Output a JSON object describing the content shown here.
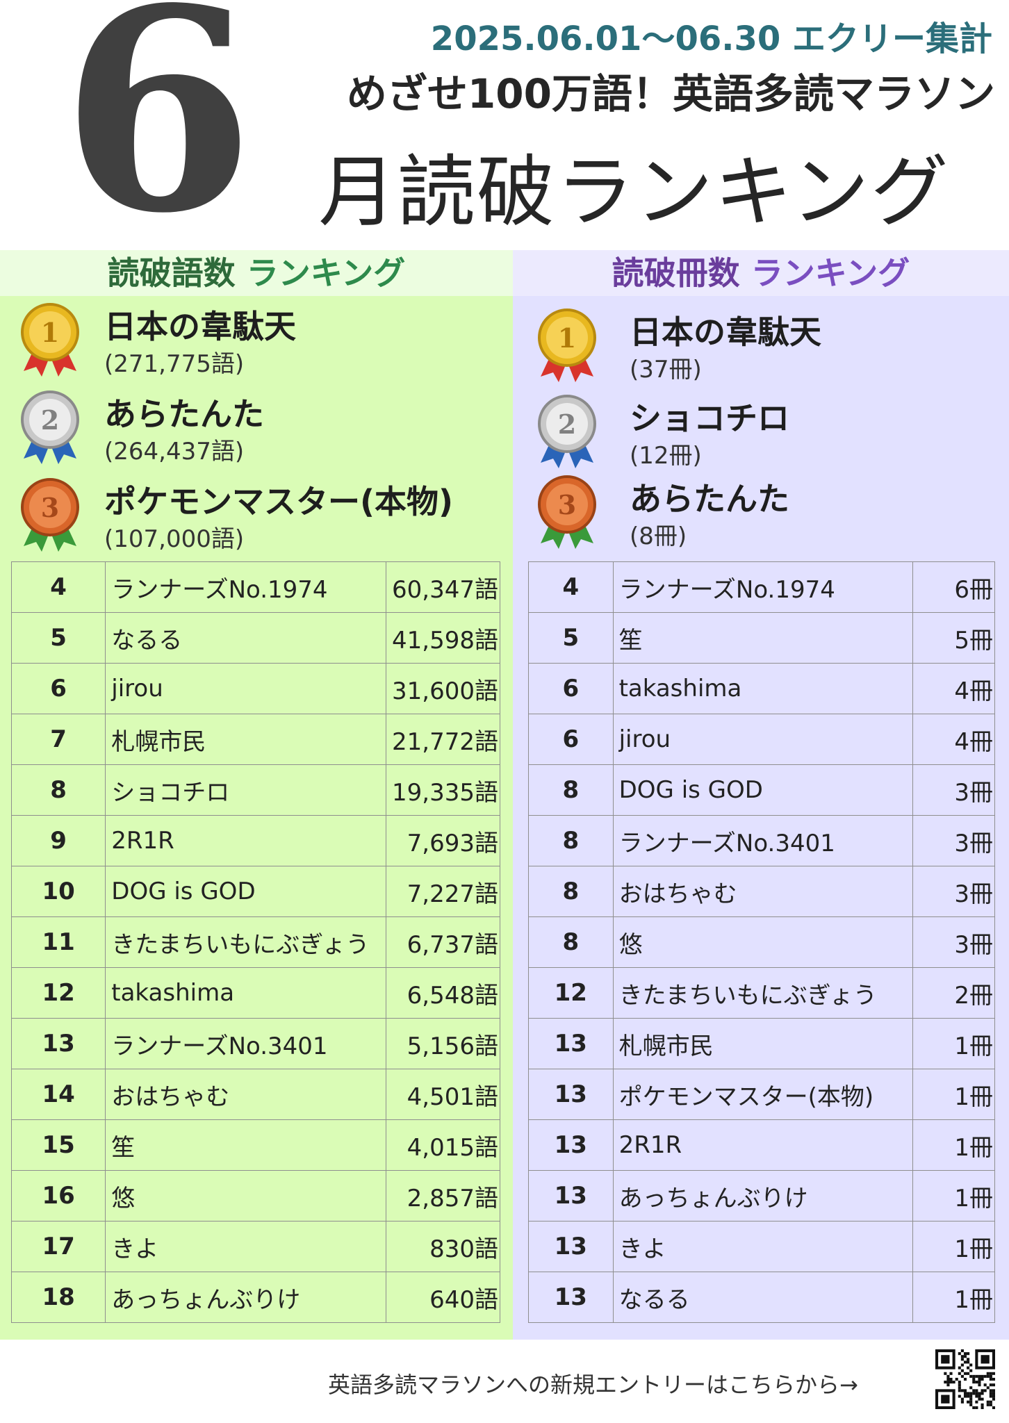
{
  "header": {
    "month_digit": "6",
    "date_range": "2025.06.01～06.30 エクリー集計",
    "subtitle": "めざせ100万語！英語多読マラソン",
    "title": "月読破ランキング"
  },
  "words_ranking": {
    "heading_a": "読破語数",
    "heading_b": "ランキング",
    "top3": [
      {
        "medal": "gold-medal-1",
        "name": "日本の韋駄天",
        "value": "(271,775語)"
      },
      {
        "medal": "silver-medal-2",
        "name": "あらたんた",
        "value": "(264,437語)"
      },
      {
        "medal": "bronze-medal-3",
        "name": "ポケモンマスター(本物)",
        "value": "(107,000語)"
      }
    ],
    "rows": [
      {
        "rank": "4",
        "name": "ランナーズNo.1974",
        "value": "60,347語"
      },
      {
        "rank": "5",
        "name": "なるる",
        "value": "41,598語"
      },
      {
        "rank": "6",
        "name": "jirou",
        "value": "31,600語"
      },
      {
        "rank": "7",
        "name": "札幌市民",
        "value": "21,772語"
      },
      {
        "rank": "8",
        "name": "ショコチロ",
        "value": "19,335語"
      },
      {
        "rank": "9",
        "name": "2R1R",
        "value": "7,693語"
      },
      {
        "rank": "10",
        "name": "DOG is GOD",
        "value": "7,227語"
      },
      {
        "rank": "11",
        "name": "きたまちいもにぶぎょう",
        "value": "6,737語"
      },
      {
        "rank": "12",
        "name": "takashima",
        "value": "6,548語"
      },
      {
        "rank": "13",
        "name": "ランナーズNo.3401",
        "value": "5,156語"
      },
      {
        "rank": "14",
        "name": "おはちゃむ",
        "value": "4,501語"
      },
      {
        "rank": "15",
        "name": "笙",
        "value": "4,015語"
      },
      {
        "rank": "16",
        "name": "悠",
        "value": "2,857語"
      },
      {
        "rank": "17",
        "name": "きよ",
        "value": "830語"
      },
      {
        "rank": "18",
        "name": "あっちょんぶりけ",
        "value": "640語"
      }
    ]
  },
  "books_ranking": {
    "heading_a": "読破冊数",
    "heading_b": "ランキング",
    "top3": [
      {
        "medal": "gold-medal-1",
        "name": "日本の韋駄天",
        "value": "(37冊)"
      },
      {
        "medal": "silver-medal-2",
        "name": "ショコチロ",
        "value": "(12冊)"
      },
      {
        "medal": "bronze-medal-3",
        "name": "あらたんた",
        "value": "(8冊)"
      }
    ],
    "rows": [
      {
        "rank": "4",
        "name": "ランナーズNo.1974",
        "value": "6冊"
      },
      {
        "rank": "5",
        "name": "笙",
        "value": "5冊"
      },
      {
        "rank": "6",
        "name": "takashima",
        "value": "4冊"
      },
      {
        "rank": "6",
        "name": "jirou",
        "value": "4冊"
      },
      {
        "rank": "8",
        "name": "DOG is GOD",
        "value": "3冊"
      },
      {
        "rank": "8",
        "name": "ランナーズNo.3401",
        "value": "3冊"
      },
      {
        "rank": "8",
        "name": "おはちゃむ",
        "value": "3冊"
      },
      {
        "rank": "8",
        "name": "悠",
        "value": "3冊"
      },
      {
        "rank": "12",
        "name": "きたまちいもにぶぎょう",
        "value": "2冊"
      },
      {
        "rank": "13",
        "name": "札幌市民",
        "value": "1冊"
      },
      {
        "rank": "13",
        "name": "ポケモンマスター(本物)",
        "value": "1冊"
      },
      {
        "rank": "13",
        "name": "2R1R",
        "value": "1冊"
      },
      {
        "rank": "13",
        "name": "あっちょんぶりけ",
        "value": "1冊"
      },
      {
        "rank": "13",
        "name": "きよ",
        "value": "1冊"
      },
      {
        "rank": "13",
        "name": "なるる",
        "value": "1冊"
      }
    ]
  },
  "footer": {
    "entry_text": "英語多読マラソンへの新規エントリーはこちらから→",
    "qr_icon": "qr-code-icon"
  },
  "colors": {
    "left_panel": "#dafcb6",
    "right_panel": "#e2e1ff",
    "gold": "#e8b820",
    "silver": "#c8c8c8",
    "bronze": "#d9662a"
  }
}
